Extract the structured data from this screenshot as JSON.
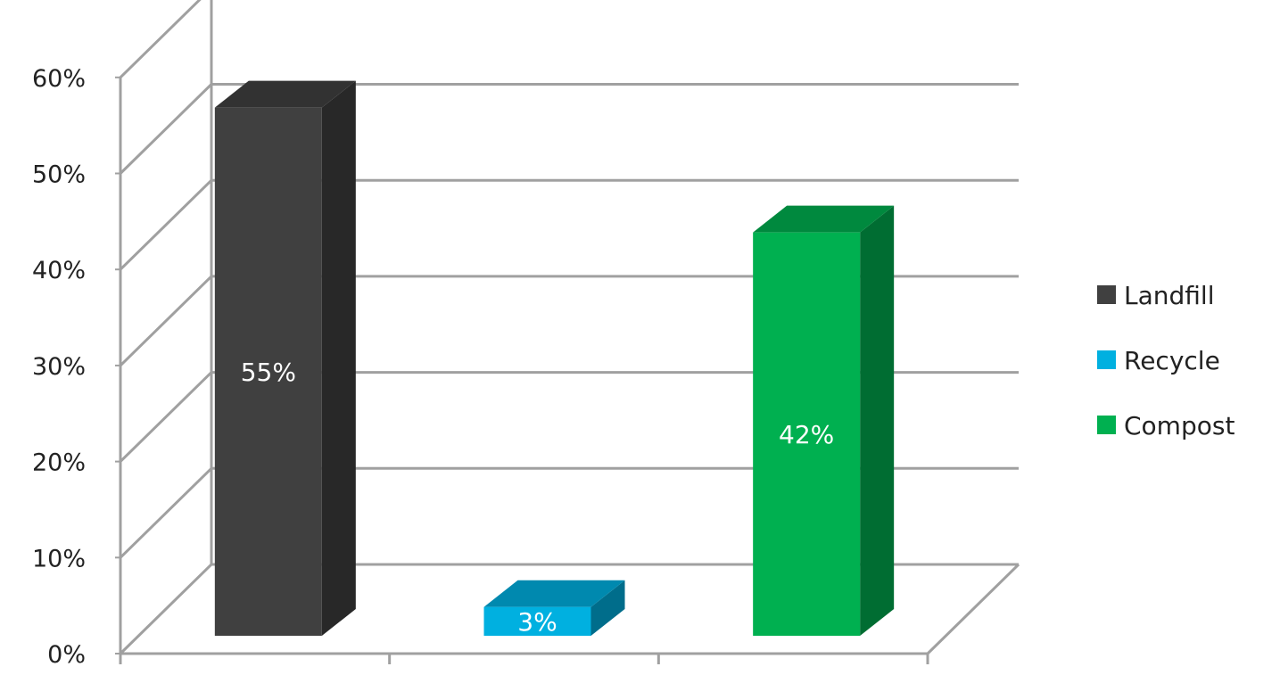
{
  "chart_data": {
    "type": "bar",
    "categories": [
      "Landfill",
      "Recycle",
      "Compost"
    ],
    "values": [
      55,
      3,
      42
    ],
    "value_labels": [
      "55%",
      "3%",
      "42%"
    ],
    "ylim": [
      0,
      60
    ],
    "yticks": [
      0,
      10,
      20,
      30,
      40,
      50,
      60
    ],
    "ytick_labels": [
      "0%",
      "10%",
      "20%",
      "30%",
      "40%",
      "50%",
      "60%"
    ],
    "grid": true,
    "legend": {
      "placement": "right",
      "items": [
        {
          "label": "Landfill",
          "color": "#404040"
        },
        {
          "label": "Recycle",
          "color": "#00b0e0"
        },
        {
          "label": "Compost",
          "color": "#00b050"
        }
      ]
    },
    "style": "3d-column"
  }
}
